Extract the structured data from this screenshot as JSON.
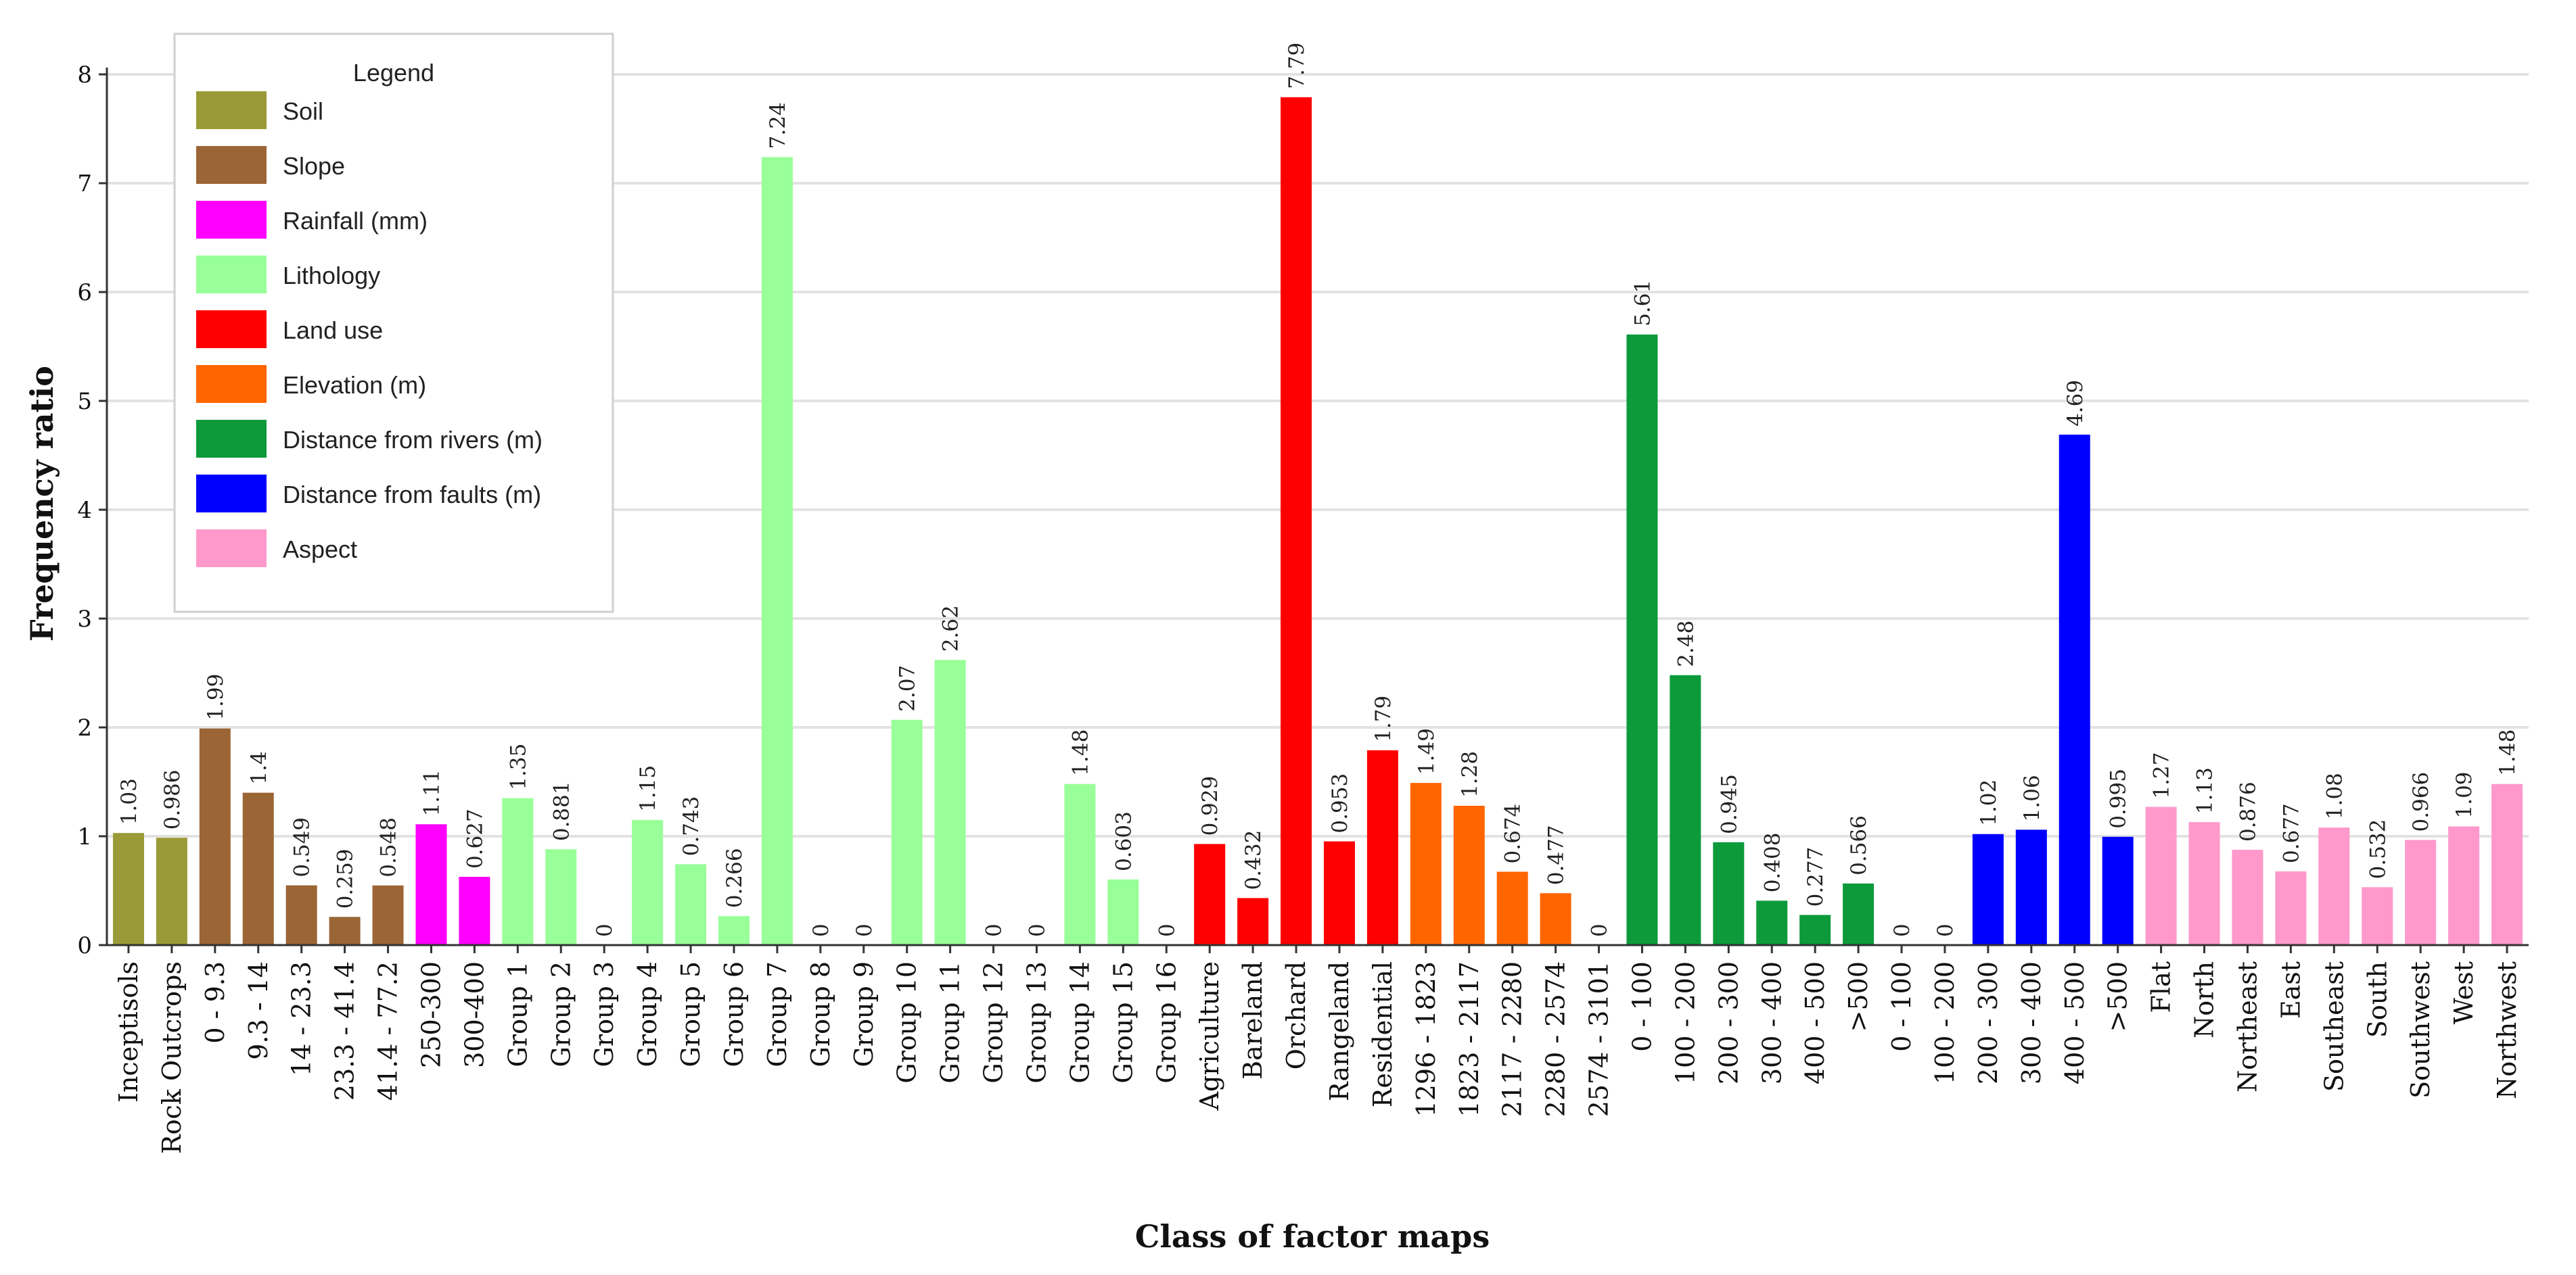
{
  "chart_data": {
    "type": "bar",
    "title": "",
    "xlabel": "Class of factor maps",
    "ylabel": "Frequency ratio",
    "ylim": [
      0,
      8
    ],
    "yticks": [
      0,
      1,
      2,
      3,
      4,
      5,
      6,
      7,
      8
    ],
    "grid": true,
    "legend": {
      "title": "Legend",
      "placement": "top-left",
      "entries": [
        {
          "name": "Soil",
          "color": "#9a9a38"
        },
        {
          "name": "Slope",
          "color": "#9b6535"
        },
        {
          "name": "Rainfall (mm)",
          "color": "#ff00ff"
        },
        {
          "name": "Lithology",
          "color": "#99ff99"
        },
        {
          "name": "Land use",
          "color": "#ff0000"
        },
        {
          "name": "Elevation (m)",
          "color": "#ff6600"
        },
        {
          "name": "Distance from rivers (m)",
          "color": "#0c9a3b"
        },
        {
          "name": "Distance from faults (m)",
          "color": "#0000ff"
        },
        {
          "name": "Aspect",
          "color": "#ff99cc"
        }
      ]
    },
    "bars": [
      {
        "category": "Inceptisols",
        "value": 1.03,
        "label": "1.03",
        "group": 0
      },
      {
        "category": "Rock Outcrops",
        "value": 0.986,
        "label": "0.986",
        "group": 0
      },
      {
        "category": "0 - 9.3",
        "value": 1.99,
        "label": "1.99",
        "group": 1
      },
      {
        "category": "9.3 - 14",
        "value": 1.4,
        "label": "1.4",
        "group": 1
      },
      {
        "category": "14 - 23.3",
        "value": 0.549,
        "label": "0.549",
        "group": 1
      },
      {
        "category": "23.3 - 41.4",
        "value": 0.259,
        "label": "0.259",
        "group": 1
      },
      {
        "category": "41.4 - 77.2",
        "value": 0.548,
        "label": "0.548",
        "group": 1
      },
      {
        "category": "250-300",
        "value": 1.11,
        "label": "1.11",
        "group": 2
      },
      {
        "category": "300-400",
        "value": 0.627,
        "label": "0.627",
        "group": 2
      },
      {
        "category": "Group 1",
        "value": 1.35,
        "label": "1.35",
        "group": 3
      },
      {
        "category": "Group 2",
        "value": 0.881,
        "label": "0.881",
        "group": 3
      },
      {
        "category": "Group 3",
        "value": 0,
        "label": "0",
        "group": 3
      },
      {
        "category": "Group 4",
        "value": 1.15,
        "label": "1.15",
        "group": 3
      },
      {
        "category": "Group 5",
        "value": 0.743,
        "label": "0.743",
        "group": 3
      },
      {
        "category": "Group 6",
        "value": 0.266,
        "label": "0.266",
        "group": 3
      },
      {
        "category": "Group 7",
        "value": 7.24,
        "label": "7.24",
        "group": 3
      },
      {
        "category": "Group 8",
        "value": 0,
        "label": "0",
        "group": 3
      },
      {
        "category": "Group 9",
        "value": 0,
        "label": "0",
        "group": 3
      },
      {
        "category": "Group 10",
        "value": 2.07,
        "label": "2.07",
        "group": 3
      },
      {
        "category": "Group 11",
        "value": 2.62,
        "label": "2.62",
        "group": 3
      },
      {
        "category": "Group 12",
        "value": 0,
        "label": "0",
        "group": 3
      },
      {
        "category": "Group 13",
        "value": 0,
        "label": "0",
        "group": 3
      },
      {
        "category": "Group 14",
        "value": 1.48,
        "label": "1.48",
        "group": 3
      },
      {
        "category": "Group 15",
        "value": 0.603,
        "label": "0.603",
        "group": 3
      },
      {
        "category": "Group 16",
        "value": 0,
        "label": "0",
        "group": 3
      },
      {
        "category": "Agriculture",
        "value": 0.929,
        "label": "0.929",
        "group": 4
      },
      {
        "category": "Bareland",
        "value": 0.432,
        "label": "0.432",
        "group": 4
      },
      {
        "category": "Orchard",
        "value": 7.79,
        "label": "7.79",
        "group": 4
      },
      {
        "category": "Rangeland",
        "value": 0.953,
        "label": "0.953",
        "group": 4
      },
      {
        "category": "Residential",
        "value": 1.79,
        "label": "1.79",
        "group": 4
      },
      {
        "category": "1296 - 1823",
        "value": 1.49,
        "label": "1.49",
        "group": 5
      },
      {
        "category": "1823 - 2117",
        "value": 1.28,
        "label": "1.28",
        "group": 5
      },
      {
        "category": "2117 - 2280",
        "value": 0.674,
        "label": "0.674",
        "group": 5
      },
      {
        "category": "2280 - 2574",
        "value": 0.477,
        "label": "0.477",
        "group": 5
      },
      {
        "category": "2574 - 3101",
        "value": 0,
        "label": "0",
        "group": 5
      },
      {
        "category": "0 - 100",
        "value": 5.61,
        "label": "5.61",
        "group": 6
      },
      {
        "category": "100 - 200",
        "value": 2.48,
        "label": "2.48",
        "group": 6
      },
      {
        "category": "200 - 300",
        "value": 0.945,
        "label": "0.945",
        "group": 6
      },
      {
        "category": "300 - 400",
        "value": 0.408,
        "label": "0.408",
        "group": 6
      },
      {
        "category": "400 - 500",
        "value": 0.277,
        "label": "0.277",
        "group": 6
      },
      {
        "category": ">500",
        "value": 0.566,
        "label": "0.566",
        "group": 6
      },
      {
        "category": "0 - 100",
        "value": 0,
        "label": "0",
        "group": 7
      },
      {
        "category": "100 - 200",
        "value": 0,
        "label": "0",
        "group": 7
      },
      {
        "category": "200 - 300",
        "value": 1.02,
        "label": "1.02",
        "group": 7
      },
      {
        "category": "300 - 400",
        "value": 1.06,
        "label": "1.06",
        "group": 7
      },
      {
        "category": "400 - 500",
        "value": 4.69,
        "label": "4.69",
        "group": 7
      },
      {
        "category": ">500",
        "value": 0.995,
        "label": "0.995",
        "group": 7
      },
      {
        "category": "Flat",
        "value": 1.27,
        "label": "1.27",
        "group": 8
      },
      {
        "category": "North",
        "value": 1.13,
        "label": "1.13",
        "group": 8
      },
      {
        "category": "Northeast",
        "value": 0.876,
        "label": "0.876",
        "group": 8
      },
      {
        "category": "East",
        "value": 0.677,
        "label": "0.677",
        "group": 8
      },
      {
        "category": "Southeast",
        "value": 1.08,
        "label": "1.08",
        "group": 8
      },
      {
        "category": "South",
        "value": 0.532,
        "label": "0.532",
        "group": 8
      },
      {
        "category": "Southwest",
        "value": 0.966,
        "label": "0.966",
        "group": 8
      },
      {
        "category": "West",
        "value": 1.09,
        "label": "1.09",
        "group": 8
      },
      {
        "category": "Northwest",
        "value": 1.48,
        "label": "1.48",
        "group": 8
      }
    ]
  }
}
